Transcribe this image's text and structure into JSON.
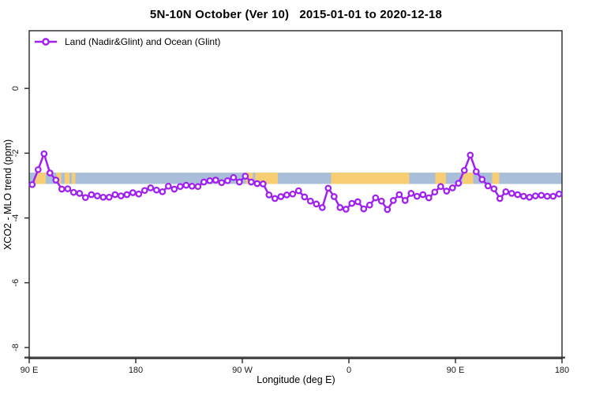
{
  "window": {
    "background": "#ffffff"
  },
  "chart_data": {
    "type": "line",
    "title": "5N-10N October (Ver 10)   2015-01-01 to 2020-12-18",
    "xlabel": "Longitude (deg E)",
    "ylabel": "XCO2 - MLO trend (ppm)",
    "grid": false,
    "legend_position": "top-left-inside",
    "axis_color": "#262626",
    "tick_label_color": "#1a1a1a",
    "xlim_deg": [
      90,
      540
    ],
    "ylim": [
      -8.34,
      1.78
    ],
    "x_ticks": [
      {
        "deg": 90,
        "label": "90 E"
      },
      {
        "deg": 180,
        "label": "180"
      },
      {
        "deg": 270,
        "label": "90 W"
      },
      {
        "deg": 360,
        "label": "0"
      },
      {
        "deg": 450,
        "label": "90 E"
      },
      {
        "deg": 540,
        "label": "180"
      }
    ],
    "y_ticks": [
      {
        "value": 0,
        "label": "0"
      },
      {
        "value": -2,
        "label": "-2"
      },
      {
        "value": -4,
        "label": "-4"
      },
      {
        "value": -6,
        "label": "-6"
      },
      {
        "value": -8,
        "label": "-8"
      }
    ],
    "x_start_deg": 92.5,
    "x_step_deg": 5,
    "series": [
      {
        "name": "Land (Nadir&Glint) and Ocean (Glint)",
        "color": "#A020F0",
        "marker": "open-circle",
        "values": [
          -2.97,
          -2.51,
          -2.02,
          -2.61,
          -2.83,
          -3.11,
          -3.1,
          -3.21,
          -3.24,
          -3.37,
          -3.28,
          -3.32,
          -3.36,
          -3.36,
          -3.28,
          -3.32,
          -3.28,
          -3.22,
          -3.26,
          -3.15,
          -3.07,
          -3.14,
          -3.19,
          -3.02,
          -3.11,
          -3.03,
          -2.99,
          -3.02,
          -3.03,
          -2.89,
          -2.85,
          -2.83,
          -2.91,
          -2.85,
          -2.75,
          -2.89,
          -2.71,
          -2.89,
          -2.94,
          -2.95,
          -3.29,
          -3.4,
          -3.34,
          -3.29,
          -3.26,
          -3.16,
          -3.35,
          -3.48,
          -3.57,
          -3.68,
          -3.08,
          -3.34,
          -3.68,
          -3.73,
          -3.55,
          -3.5,
          -3.72,
          -3.6,
          -3.38,
          -3.48,
          -3.74,
          -3.46,
          -3.28,
          -3.46,
          -3.24,
          -3.33,
          -3.28,
          -3.38,
          -3.2,
          -3.03,
          -3.17,
          -3.07,
          -2.93,
          -2.53,
          -2.06,
          -2.57,
          -2.81,
          -3.01,
          -3.1,
          -3.4,
          -3.19,
          -3.24,
          -3.28,
          -3.33,
          -3.36,
          -3.32,
          -3.3,
          -3.33,
          -3.33,
          -3.26
        ]
      }
    ],
    "land_ocean_band": {
      "value_top": -2.6,
      "value_bottom": -2.95,
      "ocean_color": "#a9bfd9",
      "land_color": "#f8ce74",
      "land_segments_deg": [
        [
          95,
          104
        ],
        [
          113,
          117
        ],
        [
          120,
          124
        ],
        [
          126,
          129
        ],
        [
          273,
          279
        ],
        [
          281,
          300
        ],
        [
          345,
          411
        ],
        [
          433,
          442
        ],
        [
          456,
          465
        ],
        [
          481,
          487
        ]
      ]
    }
  }
}
